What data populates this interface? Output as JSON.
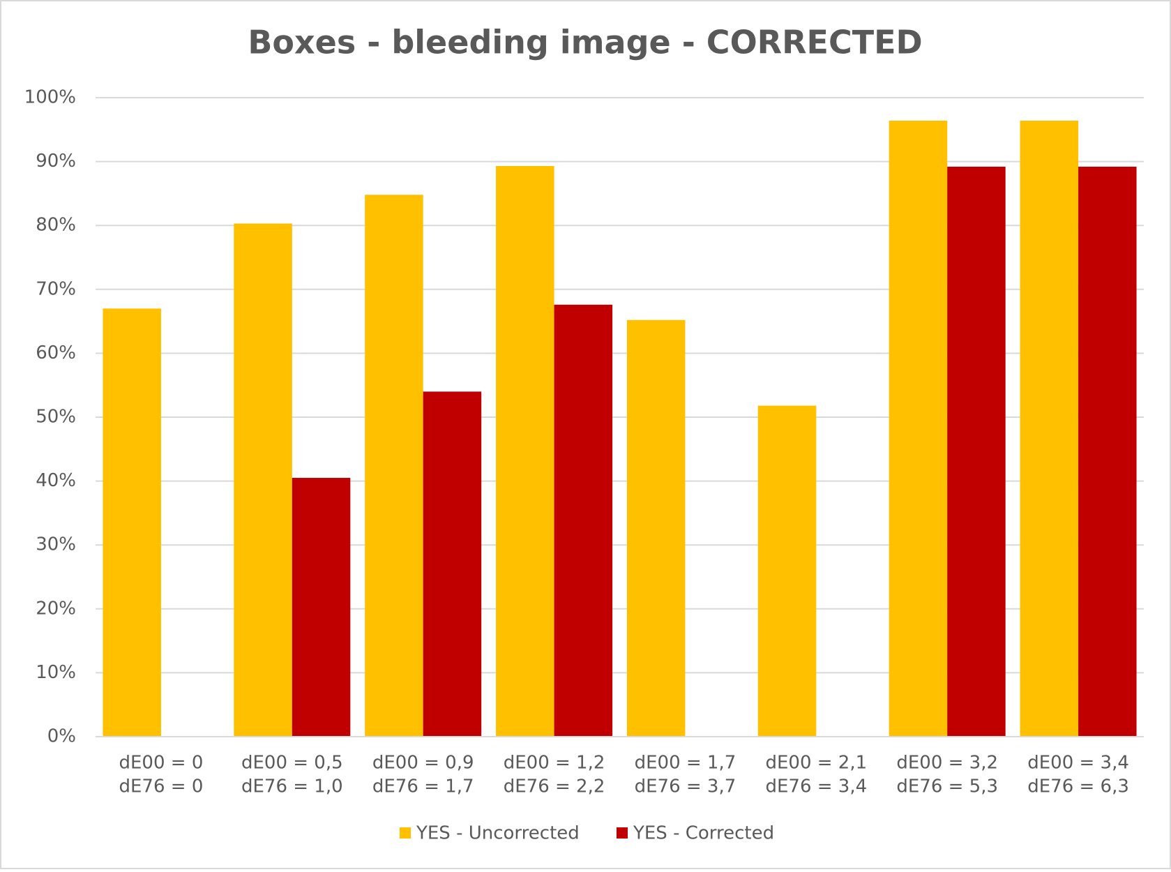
{
  "chart_data": {
    "type": "bar",
    "title": "Boxes - bleeding image - CORRECTED",
    "categories": [
      [
        "dE00 = 0",
        "dE76 = 0"
      ],
      [
        "dE00 = 0,5",
        "dE76 = 1,0"
      ],
      [
        "dE00 = 0,9",
        "dE76 = 1,7"
      ],
      [
        "dE00 = 1,2",
        "dE76 = 2,2"
      ],
      [
        "dE00 = 1,7",
        "dE76 = 3,7"
      ],
      [
        "dE00 = 2,1",
        "dE76 = 3,4"
      ],
      [
        "dE00 = 3,2",
        "dE76 = 5,3"
      ],
      [
        "dE00 = 3,4",
        "dE76 = 6,3"
      ]
    ],
    "series": [
      {
        "name": "YES - Uncorrected",
        "color": "#ffc000",
        "values": [
          67,
          80.3,
          84.8,
          89.3,
          65.2,
          51.8,
          96.4,
          96.4
        ]
      },
      {
        "name": "YES - Corrected",
        "color": "#c00000",
        "values": [
          0,
          40.5,
          54,
          67.6,
          0,
          0,
          89.2,
          89.2
        ]
      }
    ],
    "ylim": [
      0,
      100
    ],
    "yticks": [
      {
        "value": 0,
        "label": "0%"
      },
      {
        "value": 10,
        "label": "10%"
      },
      {
        "value": 20,
        "label": "20%"
      },
      {
        "value": 30,
        "label": "30%"
      },
      {
        "value": 40,
        "label": "40%"
      },
      {
        "value": 50,
        "label": "50%"
      },
      {
        "value": 60,
        "label": "60%"
      },
      {
        "value": 70,
        "label": "70%"
      },
      {
        "value": 80,
        "label": "80%"
      },
      {
        "value": 90,
        "label": "90%"
      },
      {
        "value": 100,
        "label": "100%"
      }
    ],
    "grid": true,
    "legend": "bottom"
  }
}
